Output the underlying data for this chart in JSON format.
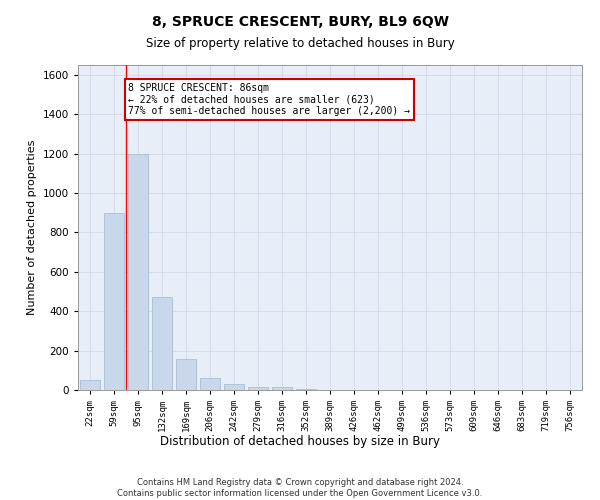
{
  "title": "8, SPRUCE CRESCENT, BURY, BL9 6QW",
  "subtitle": "Size of property relative to detached houses in Bury",
  "xlabel": "Distribution of detached houses by size in Bury",
  "ylabel": "Number of detached properties",
  "categories": [
    "22sqm",
    "59sqm",
    "95sqm",
    "132sqm",
    "169sqm",
    "206sqm",
    "242sqm",
    "279sqm",
    "316sqm",
    "352sqm",
    "389sqm",
    "426sqm",
    "462sqm",
    "499sqm",
    "536sqm",
    "573sqm",
    "609sqm",
    "646sqm",
    "683sqm",
    "719sqm",
    "756sqm"
  ],
  "values": [
    50,
    900,
    1200,
    470,
    155,
    60,
    30,
    15,
    15,
    5,
    2,
    2,
    0,
    0,
    0,
    0,
    0,
    0,
    0,
    0,
    0
  ],
  "bar_color": "#c8d8ea",
  "bar_edge_color": "#a0b8cc",
  "ylim": [
    0,
    1650
  ],
  "yticks": [
    0,
    200,
    400,
    600,
    800,
    1000,
    1200,
    1400,
    1600
  ],
  "annotation_text": "8 SPRUCE CRESCENT: 86sqm\n← 22% of detached houses are smaller (623)\n77% of semi-detached houses are larger (2,200) →",
  "annotation_box_color": "#ffffff",
  "annotation_box_edge_color": "#cc0000",
  "red_line_x": 1.5,
  "footnote": "Contains HM Land Registry data © Crown copyright and database right 2024.\nContains public sector information licensed under the Open Government Licence v3.0.",
  "grid_color": "#d0d8e8",
  "bg_color": "#e8eef8"
}
